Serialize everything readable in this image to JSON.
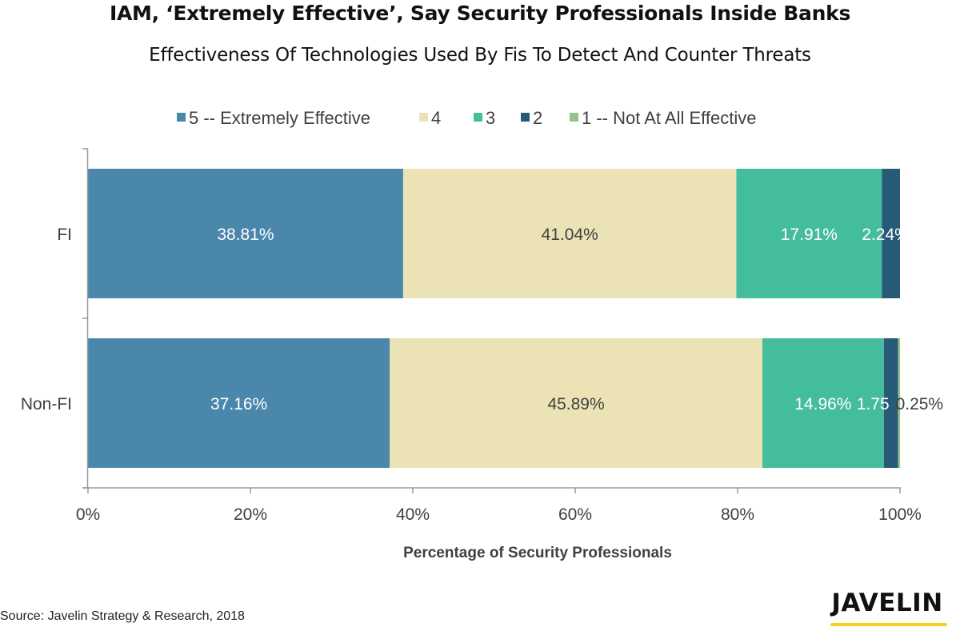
{
  "chart_data": {
    "type": "bar",
    "orientation": "horizontal",
    "stacked": true,
    "title": "IAM, ‘Extremely Effective’, Say Security Professionals Inside Banks",
    "subtitle": "Effectiveness Of Technologies Used By Fis To Detect And Counter Threats",
    "xlabel": "Percentage of Security Professionals",
    "ylabel": "",
    "xlim": [
      0,
      100
    ],
    "x_ticks": [
      "0%",
      "20%",
      "40%",
      "60%",
      "80%",
      "100%"
    ],
    "x_tick_values": [
      0,
      20,
      40,
      60,
      80,
      100
    ],
    "grid": false,
    "legend_position": "top",
    "categories": [
      "FI",
      "Non-FI"
    ],
    "series": [
      {
        "name": "5 -- Extremely Effective",
        "color": "#4a87ab",
        "values": [
          38.81,
          37.16
        ],
        "labels": [
          "38.81%",
          "37.16%"
        ],
        "label_color": "#ffffff"
      },
      {
        "name": "4",
        "color": "#ebe2b5",
        "values": [
          41.04,
          45.89
        ],
        "labels": [
          "41.04%",
          "45.89%"
        ],
        "label_color": "#404040"
      },
      {
        "name": "3",
        "color": "#44bd9d",
        "values": [
          17.91,
          14.96
        ],
        "labels": [
          "17.91%",
          "14.96%"
        ],
        "label_color": "#ffffff"
      },
      {
        "name": "2",
        "color": "#265a77",
        "values": [
          2.24,
          1.75
        ],
        "labels": [
          "2.24%",
          "1.75"
        ],
        "label_color": "#ffffff"
      },
      {
        "name": "1 -- Not At All Effective",
        "color": "#96c08c",
        "values": [
          0,
          0.25
        ],
        "labels": [
          "",
          "0.25%"
        ],
        "label_color": "#404040"
      }
    ]
  },
  "footer": {
    "source": "Source: Javelin Strategy & Research, 2018",
    "logo_text": "JAVELIN"
  }
}
